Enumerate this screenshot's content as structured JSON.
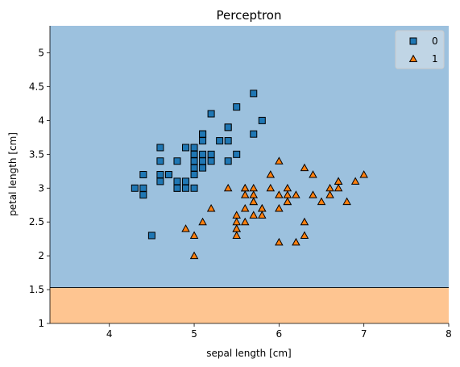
{
  "chart_data": {
    "type": "scatter",
    "title": "Perceptron",
    "xlabel": "sepal length [cm]",
    "ylabel": "petal length [cm]",
    "xlim": [
      3.3,
      8.0
    ],
    "ylim": [
      1.0,
      5.4
    ],
    "xticks": [
      4,
      5,
      6,
      7,
      8
    ],
    "yticks": [
      1.0,
      1.5,
      2.0,
      2.5,
      3.0,
      3.5,
      4.0,
      4.5,
      5.0
    ],
    "grid": false,
    "legend_position": "top-right",
    "decision_boundary": {
      "y": 1.53,
      "above_class": "0",
      "below_class": "1",
      "above_color": "#9cc1de",
      "below_color": "#fec591"
    },
    "series": [
      {
        "name": "0",
        "marker": "square",
        "color": "#1f77b4",
        "points": [
          [
            4.3,
            3.0
          ],
          [
            4.4,
            3.2
          ],
          [
            4.4,
            3.0
          ],
          [
            4.4,
            2.9
          ],
          [
            4.5,
            2.3
          ],
          [
            4.6,
            3.6
          ],
          [
            4.6,
            3.4
          ],
          [
            4.6,
            3.2
          ],
          [
            4.6,
            3.1
          ],
          [
            4.7,
            3.2
          ],
          [
            4.7,
            3.2
          ],
          [
            4.8,
            3.4
          ],
          [
            4.8,
            3.1
          ],
          [
            4.8,
            3.0
          ],
          [
            4.8,
            3.0
          ],
          [
            4.9,
            3.6
          ],
          [
            4.9,
            3.1
          ],
          [
            4.9,
            3.0
          ],
          [
            5.0,
            3.6
          ],
          [
            5.0,
            3.5
          ],
          [
            5.0,
            3.4
          ],
          [
            5.0,
            3.3
          ],
          [
            5.0,
            3.2
          ],
          [
            5.0,
            3.0
          ],
          [
            5.1,
            3.8
          ],
          [
            5.1,
            3.8
          ],
          [
            5.1,
            3.7
          ],
          [
            5.1,
            3.5
          ],
          [
            5.1,
            3.4
          ],
          [
            5.1,
            3.3
          ],
          [
            5.2,
            4.1
          ],
          [
            5.2,
            3.5
          ],
          [
            5.2,
            3.4
          ],
          [
            5.3,
            3.7
          ],
          [
            5.4,
            3.9
          ],
          [
            5.4,
            3.9
          ],
          [
            5.4,
            3.7
          ],
          [
            5.4,
            3.4
          ],
          [
            5.5,
            4.2
          ],
          [
            5.5,
            3.5
          ],
          [
            5.7,
            4.4
          ],
          [
            5.7,
            3.8
          ],
          [
            5.8,
            4.0
          ]
        ]
      },
      {
        "name": "1",
        "marker": "triangle",
        "color": "#ff7f0e",
        "points": [
          [
            4.9,
            2.4
          ],
          [
            5.0,
            2.3
          ],
          [
            5.0,
            2.0
          ],
          [
            5.1,
            2.5
          ],
          [
            5.2,
            2.7
          ],
          [
            5.4,
            3.0
          ],
          [
            5.5,
            2.6
          ],
          [
            5.5,
            2.5
          ],
          [
            5.5,
            2.4
          ],
          [
            5.5,
            2.4
          ],
          [
            5.5,
            2.3
          ],
          [
            5.6,
            3.0
          ],
          [
            5.6,
            2.9
          ],
          [
            5.6,
            2.7
          ],
          [
            5.6,
            2.5
          ],
          [
            5.6,
            3.0
          ],
          [
            5.7,
            3.0
          ],
          [
            5.7,
            2.9
          ],
          [
            5.7,
            2.8
          ],
          [
            5.7,
            2.8
          ],
          [
            5.7,
            2.6
          ],
          [
            5.8,
            2.7
          ],
          [
            5.8,
            2.7
          ],
          [
            5.8,
            2.6
          ],
          [
            5.9,
            3.2
          ],
          [
            5.9,
            3.0
          ],
          [
            6.0,
            3.4
          ],
          [
            6.0,
            2.9
          ],
          [
            6.0,
            2.7
          ],
          [
            6.0,
            2.2
          ],
          [
            6.1,
            3.0
          ],
          [
            6.1,
            2.9
          ],
          [
            6.1,
            2.8
          ],
          [
            6.1,
            2.8
          ],
          [
            6.2,
            2.9
          ],
          [
            6.2,
            2.2
          ],
          [
            6.3,
            3.3
          ],
          [
            6.3,
            2.5
          ],
          [
            6.3,
            2.3
          ],
          [
            6.4,
            3.2
          ],
          [
            6.4,
            2.9
          ],
          [
            6.5,
            2.8
          ],
          [
            6.6,
            3.0
          ],
          [
            6.6,
            2.9
          ],
          [
            6.7,
            3.1
          ],
          [
            6.7,
            3.1
          ],
          [
            6.7,
            3.0
          ],
          [
            6.8,
            2.8
          ],
          [
            6.9,
            3.1
          ],
          [
            7.0,
            3.2
          ]
        ]
      }
    ]
  }
}
